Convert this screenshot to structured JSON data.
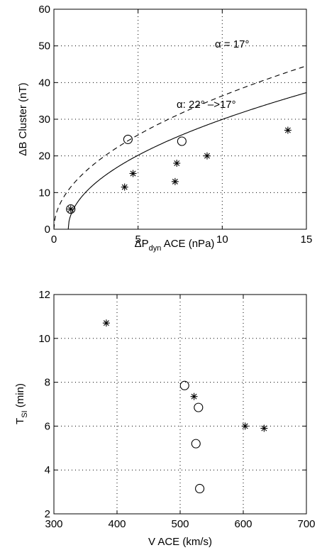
{
  "chart_data": [
    {
      "type": "scatter",
      "title": "",
      "xlabel": {
        "main": "ΔP",
        "sub": "dyn",
        "rest": " ACE (nPa)"
      },
      "ylabel": "ΔB Cluster (nT)",
      "xlim": [
        0,
        15
      ],
      "ylim": [
        0,
        60
      ],
      "xticks": [
        "0",
        "5",
        "10",
        "15"
      ],
      "yticks": [
        "0",
        "10",
        "20",
        "30",
        "40",
        "50",
        "60"
      ],
      "grid": true,
      "series": [
        {
          "marker": "asterisk",
          "x": [
            1.0,
            4.2,
            4.7,
            7.2,
            7.3,
            9.1,
            13.9
          ],
          "y": [
            5.5,
            11.5,
            15.2,
            13.0,
            18.0,
            20.0,
            27.0
          ]
        },
        {
          "marker": "circle",
          "x": [
            1.0,
            4.4,
            7.6
          ],
          "y": [
            5.5,
            24.5,
            24.0
          ]
        }
      ],
      "curves": [
        {
          "style": "dashed",
          "label": "α = 17°",
          "k": 11.5,
          "x0": 0.0
        },
        {
          "style": "solid",
          "label": "α: 22° –>17°",
          "k": 9.9,
          "x0": 0.85
        }
      ]
    },
    {
      "type": "scatter",
      "title": "",
      "xlabel": "V ACE (km/s)",
      "ylabel": {
        "main": "T",
        "sub": "SI",
        "rest": " (min)"
      },
      "xlim": [
        300,
        700
      ],
      "ylim": [
        2,
        12
      ],
      "xticks": [
        "300",
        "400",
        "500",
        "600",
        "700"
      ],
      "yticks": [
        "2",
        "4",
        "6",
        "8",
        "10",
        "12"
      ],
      "grid": true,
      "series": [
        {
          "marker": "asterisk",
          "x": [
            383,
            522,
            603,
            633
          ],
          "y": [
            10.7,
            7.35,
            6.0,
            5.9
          ]
        },
        {
          "marker": "circle",
          "x": [
            507,
            529,
            525,
            531
          ],
          "y": [
            7.85,
            6.85,
            5.2,
            3.15
          ]
        }
      ]
    }
  ]
}
